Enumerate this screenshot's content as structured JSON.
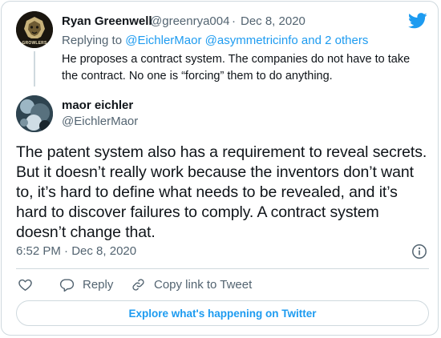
{
  "parent_tweet": {
    "author_name": "Ryan Greenwell",
    "author_handle": "@greenrya004",
    "separator": "·",
    "date": "Dec 8, 2020",
    "reply_prefix": "Replying to",
    "reply_mention_1": "@EichlerMaor",
    "reply_mention_2": "@asymmetricinfo",
    "reply_suffix": "and 2 others",
    "text": "He proposes a contract system. The companies do not have to take the contract. No one is “forcing” them to do anything.",
    "avatar_icon": "lion-crest-icon",
    "avatar_text": "GROWLERS"
  },
  "main_tweet": {
    "author_name": "maor eichler",
    "author_handle": "@EichlerMaor",
    "avatar_icon": "profile-photo-icon",
    "text": "The patent system also has a requirement to reveal secrets. But it doesn’t really work because the inventors don’t want to, it’s hard to define what needs to be revealed, and it’s hard to discover failures to comply. A contract system doesn’t change that.",
    "time": "6:52 PM",
    "separator": "·",
    "date": "Dec 8, 2020"
  },
  "actions": {
    "reply_label": "Reply",
    "copy_label": "Copy link to Tweet"
  },
  "explore_button": "Explore what's happening on Twitter",
  "colors": {
    "accent": "#1d9bf0",
    "text_primary": "#0f1419",
    "text_secondary": "#536471",
    "border": "#cfd9de"
  }
}
